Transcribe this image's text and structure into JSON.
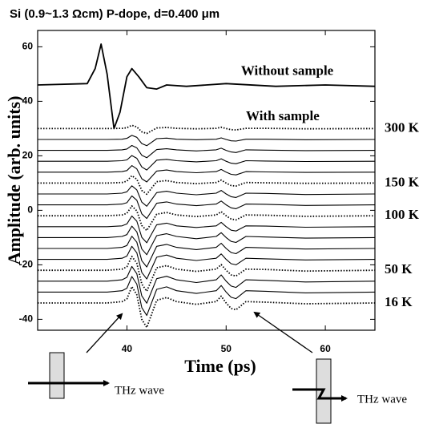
{
  "chart_data": {
    "type": "line",
    "title": "Si (0.9~1.3 Ωcm)  P-dope, d=0.400 μm",
    "x_label": "Time (ps)",
    "y_label": "Amplitude (arb. units)",
    "annotations": [
      "With sample"
    ],
    "xlim": [
      31,
      65
    ],
    "ylim": [
      -44,
      66
    ],
    "xticks": [
      40,
      50,
      60
    ],
    "yticks": [
      -40,
      -20,
      0,
      20,
      40,
      60
    ],
    "color": "#000000",
    "x": [
      31,
      38,
      39.5,
      40,
      40.5,
      41,
      41.5,
      42,
      42.5,
      43,
      44,
      45,
      47,
      49,
      49.5,
      50,
      50.5,
      51,
      52,
      54,
      58,
      65
    ],
    "series": [
      {
        "name": "Without sample",
        "style": "solid",
        "x": [
          31,
          36,
          36.8,
          37.4,
          38,
          38.7,
          39.3,
          40,
          40.5,
          41.2,
          42,
          43,
          44,
          46,
          50,
          55,
          60,
          65
        ],
        "values": [
          46,
          46.5,
          52,
          61,
          50,
          30,
          36,
          49,
          52,
          49,
          45,
          44.5,
          46,
          45.5,
          46.5,
          45.5,
          46,
          45.5
        ]
      },
      {
        "name": "300 K",
        "style": "dotted",
        "values": [
          30,
          30,
          30.1,
          30.3,
          31.2,
          30.6,
          28.8,
          28.2,
          29.2,
          30.2,
          30.4,
          30.1,
          29.9,
          30.1,
          30.5,
          30,
          29.6,
          29.5,
          30.1,
          30.1,
          29.9,
          30
        ]
      },
      {
        "style": "solid",
        "values": [
          26,
          26,
          26.1,
          26.4,
          27.5,
          26.8,
          24.5,
          23.7,
          25,
          26.3,
          26.5,
          26.1,
          25.9,
          26.1,
          26.6,
          26,
          25.5,
          25.4,
          26.1,
          26.1,
          25.9,
          26
        ]
      },
      {
        "style": "solid",
        "values": [
          22,
          22,
          22.2,
          22.5,
          23.8,
          22.9,
          20.2,
          19.3,
          20.8,
          22.3,
          22.6,
          22.2,
          21.8,
          22.2,
          22.8,
          22,
          21.4,
          21.2,
          22.2,
          22.1,
          21.9,
          22
        ]
      },
      {
        "style": "solid",
        "values": [
          18,
          18,
          18.2,
          18.5,
          20.1,
          19.1,
          15.9,
          14.8,
          16.6,
          18.4,
          18.7,
          18.2,
          17.8,
          18.2,
          18.9,
          18,
          17.3,
          17.1,
          18.2,
          18.1,
          17.9,
          18
        ]
      },
      {
        "style": "solid",
        "values": [
          14,
          14,
          14.2,
          14.6,
          16.4,
          15.2,
          11.6,
          10.4,
          12.4,
          14.4,
          14.8,
          14.2,
          13.8,
          14.2,
          15,
          14,
          13.2,
          13,
          14.2,
          14.1,
          13.9,
          14
        ]
      },
      {
        "name": "150 K",
        "style": "dotted",
        "values": [
          10,
          10,
          10.2,
          10.7,
          12.7,
          11.4,
          7.3,
          5.9,
          8.2,
          10.5,
          10.9,
          10.2,
          9.8,
          10.2,
          11.1,
          10,
          9.1,
          8.9,
          10.2,
          10.1,
          9.9,
          10
        ]
      },
      {
        "style": "solid",
        "values": [
          6,
          6,
          6.3,
          6.8,
          9,
          7.5,
          3,
          1.5,
          4,
          6.5,
          7,
          6.3,
          5.7,
          6.3,
          7.3,
          6,
          5,
          4.7,
          6.3,
          6.2,
          5.8,
          6
        ]
      },
      {
        "style": "solid",
        "values": [
          2,
          2,
          2.3,
          2.8,
          5.3,
          3.7,
          -1.3,
          -3,
          -0.2,
          2.6,
          3.1,
          2.3,
          1.7,
          2.3,
          3.4,
          2,
          0.9,
          0.6,
          2.3,
          2.2,
          1.8,
          2
        ]
      },
      {
        "name": "100 K",
        "style": "dotted",
        "values": [
          -2,
          -2,
          -1.7,
          -1.1,
          1.6,
          -0.2,
          -5.6,
          -7.4,
          -4.4,
          -1.4,
          -0.8,
          -1.7,
          -2.3,
          -1.7,
          -0.5,
          -2,
          -3.2,
          -3.5,
          -1.7,
          -1.8,
          -2.2,
          -2
        ]
      },
      {
        "style": "solid",
        "values": [
          -6,
          -6,
          -5.7,
          -5,
          -2.1,
          -4,
          -9.9,
          -11.9,
          -8.6,
          -5.3,
          -4.7,
          -5.7,
          -6.3,
          -5.7,
          -4.4,
          -6,
          -7.3,
          -7.6,
          -5.7,
          -5.8,
          -6.2,
          -6
        ]
      },
      {
        "style": "solid",
        "values": [
          -10,
          -10,
          -9.6,
          -8.9,
          -5.8,
          -7.9,
          -14.2,
          -16.3,
          -12.8,
          -9.3,
          -8.6,
          -9.6,
          -10.4,
          -9.6,
          -8.2,
          -10,
          -11.4,
          -11.8,
          -9.6,
          -9.8,
          -10.2,
          -10
        ]
      },
      {
        "style": "solid",
        "values": [
          -14,
          -14,
          -13.6,
          -12.9,
          -9.5,
          -11.7,
          -18.5,
          -20.8,
          -17,
          -13.2,
          -12.5,
          -13.6,
          -14.4,
          -13.6,
          -12.1,
          -14,
          -15.5,
          -15.9,
          -13.6,
          -13.8,
          -14.2,
          -14
        ]
      },
      {
        "style": "solid",
        "values": [
          -18,
          -18,
          -17.6,
          -16.8,
          -13.2,
          -15.6,
          -22.8,
          -25.2,
          -21.2,
          -17.2,
          -16.4,
          -17.6,
          -18.4,
          -17.6,
          -16,
          -18,
          -19.6,
          -20,
          -17.6,
          -17.8,
          -18.2,
          -18
        ]
      },
      {
        "name": "50 K",
        "style": "dotted",
        "values": [
          -22,
          -22,
          -21.6,
          -20.7,
          -16.9,
          -19.4,
          -27.1,
          -29.7,
          -25.4,
          -21.1,
          -20.3,
          -21.6,
          -22.4,
          -21.6,
          -19.9,
          -22,
          -23.7,
          -24.1,
          -21.6,
          -21.7,
          -22.3,
          -22
        ]
      },
      {
        "style": "solid",
        "values": [
          -26,
          -26,
          -25.5,
          -24.6,
          -20.6,
          -23.3,
          -31.4,
          -34.1,
          -29.6,
          -25.1,
          -24.2,
          -25.5,
          -26.5,
          -25.5,
          -23.7,
          -26,
          -27.8,
          -28.3,
          -25.5,
          -25.7,
          -26.3,
          -26
        ]
      },
      {
        "style": "solid",
        "values": [
          -30,
          -30,
          -29.5,
          -28.6,
          -24.3,
          -27.1,
          -35.7,
          -38.6,
          -33.8,
          -29,
          -28.1,
          -29.5,
          -30.5,
          -29.5,
          -27.6,
          -30,
          -31.9,
          -32.4,
          -29.5,
          -29.7,
          -30.3,
          -30
        ]
      },
      {
        "name": "16 K",
        "style": "dotted",
        "values": [
          -34,
          -34,
          -33.5,
          -32.5,
          -28,
          -31,
          -40,
          -43,
          -38,
          -33,
          -32,
          -33.5,
          -34.5,
          -33.5,
          -31.5,
          -34,
          -36,
          -36.5,
          -33.5,
          -33.7,
          -34.3,
          -34
        ]
      }
    ]
  },
  "diagram": {
    "left_label": "THz wave",
    "right_label": "THz wave"
  }
}
